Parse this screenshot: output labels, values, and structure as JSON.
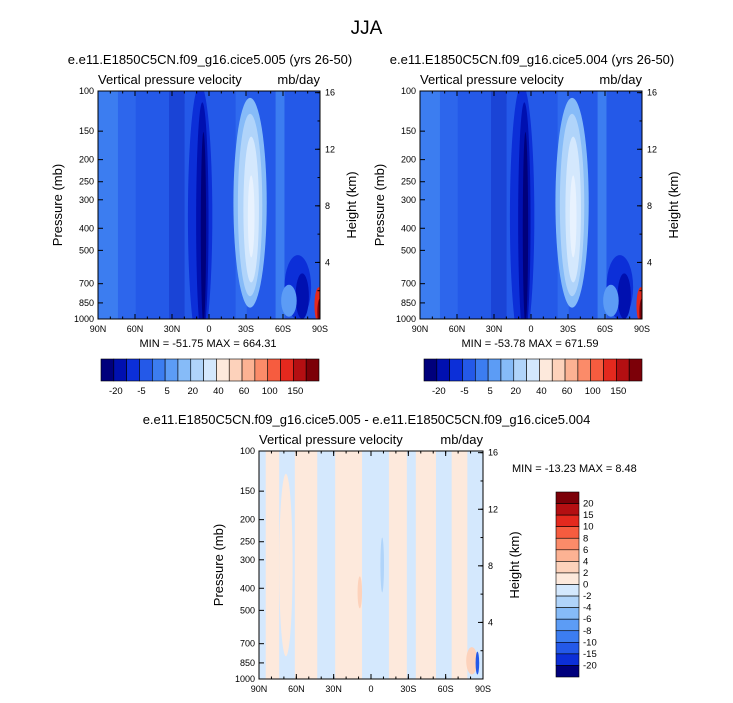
{
  "figure": {
    "title": "JJA"
  },
  "colors": {
    "scale_top": [
      "#00007c",
      "#0010b0",
      "#0c2fd8",
      "#2459e8",
      "#3c7df0",
      "#5c9cf5",
      "#86bbf8",
      "#b0d4fa",
      "#d4e8fd",
      "#fde9dc",
      "#fdd2bb",
      "#fcb293",
      "#fb8b69",
      "#f65c3f",
      "#e4291e",
      "#b40f12",
      "#7c0008"
    ],
    "scale_diff": [
      "#00007c",
      "#0c2fd8",
      "#2459e8",
      "#3c7df0",
      "#5c9cf5",
      "#86bbf8",
      "#b0d4fa",
      "#d4e8fd",
      "#fde9dc",
      "#fdd2bb",
      "#fcb293",
      "#fb8b69",
      "#f65c3f",
      "#e4291e",
      "#b40f12",
      "#7c0008"
    ]
  },
  "panels": [
    {
      "title": "e.e11.E1850C5CN.f09_g16.cice5.005 (yrs 26-50)",
      "variable": "Vertical pressure velocity",
      "units": "mb/day",
      "ylabel": "Pressure (mb)",
      "ylabel_right": "Height (km)",
      "min_max": "MIN = -51.75   MAX = 664.31"
    },
    {
      "title": "e.e11.E1850C5CN.f09_g16.cice5.004 (yrs 26-50)",
      "variable": "Vertical pressure velocity",
      "units": "mb/day",
      "ylabel": "Pressure (mb)",
      "ylabel_right": "Height (km)",
      "min_max": "MIN = -53.78   MAX = 671.59"
    },
    {
      "title": "e.e11.E1850C5CN.f09_g16.cice5.005 - e.e11.E1850C5CN.f09_g16.cice5.004",
      "variable": "Vertical pressure velocity",
      "units": "mb/day",
      "ylabel": "Pressure (mb)",
      "ylabel_right": "Height (km)",
      "min_max": "MIN = -13.23   MAX =   8.48"
    }
  ],
  "chart_data": [
    {
      "type": "heatmap",
      "x_ticks": [
        "90N",
        "60N",
        "30N",
        "0",
        "30S",
        "60S",
        "90S"
      ],
      "y_ticks": [
        "100",
        "150",
        "200",
        "250",
        "300",
        "400",
        "500",
        "700",
        "850",
        "1000"
      ],
      "y_right_ticks": [
        "16",
        "12",
        "8",
        "4"
      ],
      "y_scale": "log",
      "ylim": [
        1000,
        100
      ],
      "colorbar_labels": [
        "-20",
        "-5",
        "5",
        "20",
        "40",
        "60",
        "100",
        "150"
      ],
      "fields": [
        {
          "x": [
            75,
            89
          ],
          "color": "#2459e8"
        },
        {
          "x": [
            42,
            64
          ],
          "color": "#3c7df0"
        },
        {
          "x": [
            10,
            32
          ],
          "color": "#5c9cf5"
        },
        {
          "x": [
            -2,
            25
          ],
          "color": "#2459e8"
        }
      ]
    },
    {
      "type": "heatmap",
      "x_ticks": [
        "90N",
        "60N",
        "30N",
        "0",
        "30S",
        "60S",
        "90S"
      ],
      "y_ticks": [
        "100",
        "150",
        "200",
        "250",
        "300",
        "400",
        "500",
        "700",
        "850",
        "1000"
      ],
      "y_right_ticks": [
        "16",
        "12",
        "8",
        "4"
      ],
      "y_scale": "log",
      "ylim": [
        1000,
        100
      ],
      "colorbar_labels": [
        "-20",
        "-5",
        "5",
        "20",
        "40",
        "60",
        "100",
        "150"
      ]
    },
    {
      "type": "heatmap",
      "x_ticks": [
        "90N",
        "60N",
        "30N",
        "0",
        "30S",
        "60S",
        "90S"
      ],
      "y_ticks": [
        "100",
        "150",
        "200",
        "250",
        "300",
        "400",
        "500",
        "700",
        "850",
        "1000"
      ],
      "y_right_ticks": [
        "16",
        "12",
        "8",
        "4"
      ],
      "y_scale": "log",
      "ylim": [
        1000,
        100
      ],
      "colorbar_labels": [
        "20",
        "15",
        "10",
        "8",
        "6",
        "4",
        "2",
        "0",
        "-2",
        "-4",
        "-6",
        "-8",
        "-10",
        "-15",
        "-20"
      ]
    }
  ]
}
